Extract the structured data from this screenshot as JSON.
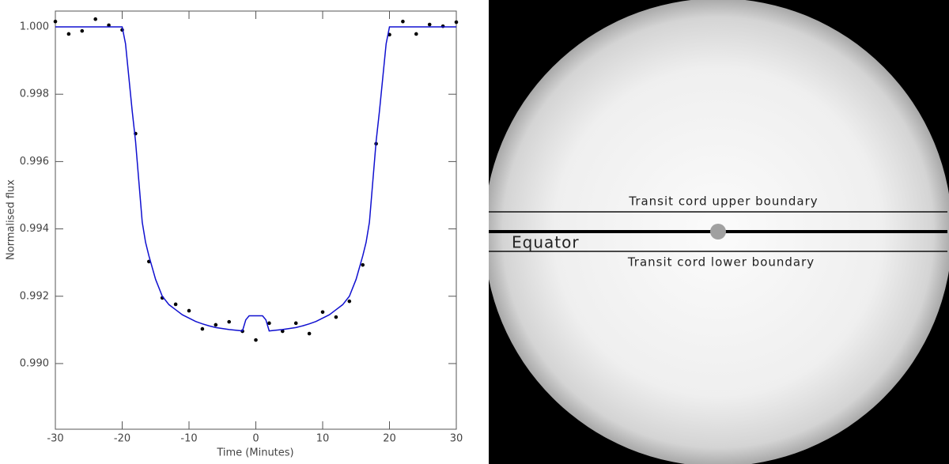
{
  "chart_data": {
    "type": "line",
    "x_label": "Time (Minutes)",
    "y_label": "Normalised flux",
    "xlim": [
      -30,
      30
    ],
    "ylim": [
      0.98805,
      1.00047
    ],
    "xticks": [
      -30,
      -20,
      -10,
      0,
      10,
      20,
      30
    ],
    "yticks": [
      {
        "value": 0.99,
        "label": "0.990"
      },
      0.992,
      0.994,
      0.996,
      0.998,
      {
        "value": 1.0,
        "label": "1.000"
      }
    ],
    "series": [
      {
        "style": "points",
        "color": "#000000",
        "x": [
          -30,
          -28,
          -26,
          -24,
          -22,
          -20,
          -18,
          -16,
          -14,
          -12,
          -10,
          -8,
          -6,
          -4,
          -2,
          0,
          2,
          4,
          6,
          8,
          10,
          12,
          14,
          16,
          18,
          20,
          22,
          24,
          26,
          28,
          30
        ],
        "values": [
          1.00016,
          0.99979,
          0.99988,
          1.00023,
          1.00005,
          0.99991,
          0.99683,
          0.99303,
          0.99195,
          0.99176,
          0.99157,
          0.99103,
          0.99115,
          0.99124,
          0.99096,
          0.9907,
          0.9912,
          0.99096,
          0.9912,
          0.99089,
          0.99153,
          0.99138,
          0.99185,
          0.99293,
          0.99653,
          0.99977,
          1.00016,
          0.99979,
          1.00007,
          1.00002,
          1.00014
        ]
      },
      {
        "style": "line",
        "color": "#1010d0",
        "x": [
          -30,
          -20,
          -19.5,
          -19,
          -18.5,
          -18,
          -17.5,
          -17,
          -16.5,
          -16,
          -15,
          -14,
          -13,
          -12,
          -11,
          -10,
          -9,
          -8,
          -7,
          -6,
          -5,
          -4,
          -3,
          -2,
          -1.5,
          -1,
          1,
          1.5,
          2,
          3,
          4,
          5,
          6,
          7,
          8,
          9,
          10,
          11,
          12,
          13,
          14,
          15,
          16,
          16.5,
          17,
          17.5,
          18,
          18.5,
          19,
          19.5,
          20,
          30
        ],
        "values": [
          1.0,
          1.0,
          0.9995,
          0.9985,
          0.9975,
          0.9966,
          0.9954,
          0.9942,
          0.9936,
          0.9932,
          0.9925,
          0.992,
          0.99175,
          0.9916,
          0.99145,
          0.99135,
          0.99125,
          0.99118,
          0.99112,
          0.99107,
          0.99104,
          0.99101,
          0.99099,
          0.99097,
          0.9913,
          0.99142,
          0.99142,
          0.9913,
          0.99097,
          0.99099,
          0.99101,
          0.99104,
          0.99107,
          0.99112,
          0.99118,
          0.99125,
          0.99135,
          0.99145,
          0.9916,
          0.99175,
          0.992,
          0.9925,
          0.9932,
          0.9936,
          0.9942,
          0.9954,
          0.9966,
          0.9975,
          0.9985,
          0.9995,
          1.0,
          1.0
        ]
      }
    ]
  },
  "star_image": {
    "upper_label": "Transit cord upper boundary",
    "equator_label": "Equator",
    "lower_label": "Transit cord lower boundary"
  }
}
